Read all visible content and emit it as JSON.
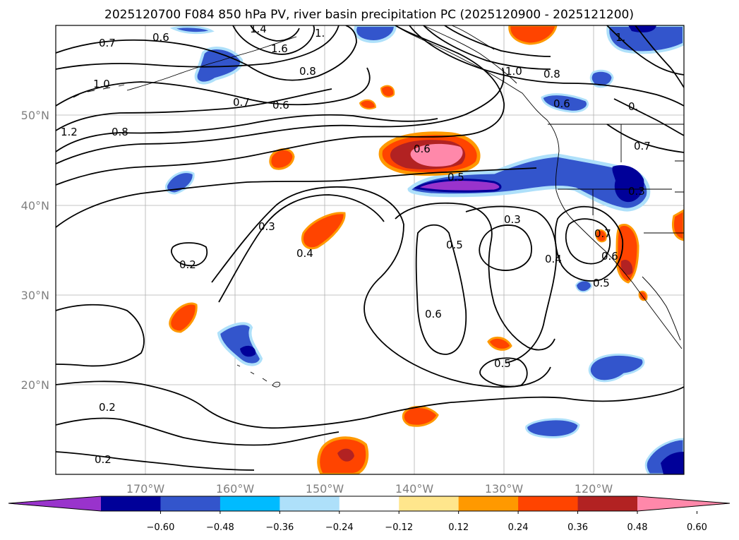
{
  "title": "2025120700 F084 850 hPa PV, river basin precipitation PC (2025120900 - 2025121200)",
  "lon_labels": [
    "170°W",
    "160°W",
    "150°W",
    "140°W",
    "130°W",
    "120°W"
  ],
  "lat_labels": [
    "50°N",
    "40°N",
    "30°N",
    "20°N"
  ],
  "colorbar": {
    "tick_labels": [
      "−0.60",
      "−0.48",
      "−0.36",
      "−0.24",
      "−0.12",
      "0.12",
      "0.24",
      "0.36",
      "0.48",
      "0.60"
    ],
    "colors": [
      "#9933cc",
      "#000099",
      "#3355cc",
      "#00bbff",
      "#aee0fa",
      "#ffffff",
      "#ffe68c",
      "#ff9900",
      "#ff4400",
      "#b22222",
      "#ff88aa"
    ]
  },
  "contour_labels": [
    "0.7",
    "0.6",
    "1.4",
    "1.6",
    "1.",
    "1.0",
    "0.8",
    "0.7",
    "0.6",
    "1.2",
    "0.8",
    "0.6",
    "0.5",
    "1.0",
    "0.8",
    "0.6",
    "0.",
    "0.7",
    "0.3",
    "0.3",
    "0.4",
    "0.2",
    "0.5",
    "0.3",
    "0.4",
    "0.6",
    "0.7",
    "0.5",
    "0.6",
    "0.5",
    "0.2",
    "0.2",
    "1."
  ]
}
